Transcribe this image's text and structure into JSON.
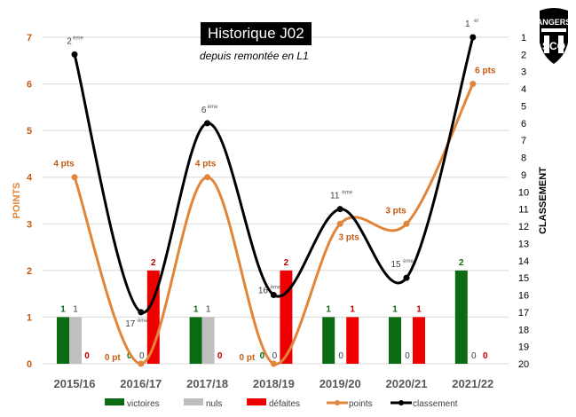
{
  "chart_data": {
    "type": "bar+line",
    "title": "Historique J02",
    "subtitle": "depuis remontée en L1",
    "categories": [
      "2015/16",
      "2016/17",
      "2017/18",
      "2018/19",
      "2019/20",
      "2020/21",
      "2021/22"
    ],
    "ylabel": "POINTS",
    "y2label": "CLASSEMENT",
    "ylim": [
      0,
      7
    ],
    "y2lim": [
      20,
      1
    ],
    "yticks": [
      "0",
      "1",
      "2",
      "3",
      "4",
      "5",
      "6",
      "7"
    ],
    "y2ticks": [
      "1",
      "2",
      "3",
      "4",
      "5",
      "6",
      "7",
      "8",
      "9",
      "10",
      "11",
      "12",
      "13",
      "14",
      "15",
      "16",
      "17",
      "18",
      "19",
      "20"
    ],
    "grid": true,
    "legend_position": "bottom",
    "series": [
      {
        "name": "victoires",
        "type": "bar",
        "color": "#0b6b12",
        "values": [
          1,
          0,
          1,
          0,
          1,
          1,
          2
        ],
        "labels": [
          "1",
          "0",
          "1",
          "0",
          "1",
          "1",
          "2"
        ]
      },
      {
        "name": "nuls",
        "type": "bar",
        "color": "#bfbfbf",
        "values": [
          1,
          0,
          1,
          0,
          0,
          0,
          0
        ],
        "labels": [
          "1",
          "0",
          "1",
          "0",
          "0",
          "0",
          "0"
        ]
      },
      {
        "name": "défaites",
        "type": "bar",
        "color": "#ee0000",
        "values": [
          0,
          2,
          0,
          2,
          1,
          1,
          0
        ],
        "labels": [
          "0",
          "2",
          "0",
          "2",
          "1",
          "1",
          "0"
        ]
      },
      {
        "name": "points",
        "type": "line",
        "color": "#e0853a",
        "values": [
          4,
          0,
          4,
          0,
          3,
          3,
          6
        ],
        "labels": [
          "4 pts",
          "0 pt",
          "4 pts",
          "0 pt",
          "3 pts",
          "3 pts",
          "6 pts"
        ]
      },
      {
        "name": "classement",
        "type": "line",
        "axis": "right",
        "color": "#000000",
        "values": [
          2,
          17,
          6,
          16,
          11,
          15,
          1
        ],
        "labels": [
          "2",
          "17",
          "6",
          "16",
          "11",
          "15",
          "1"
        ],
        "suffixes": [
          "ème",
          "ème",
          "ème",
          "ème",
          "ème",
          "ème",
          "er"
        ]
      }
    ]
  },
  "logo": {
    "text": "ANGERS",
    "sub": "SCO"
  }
}
